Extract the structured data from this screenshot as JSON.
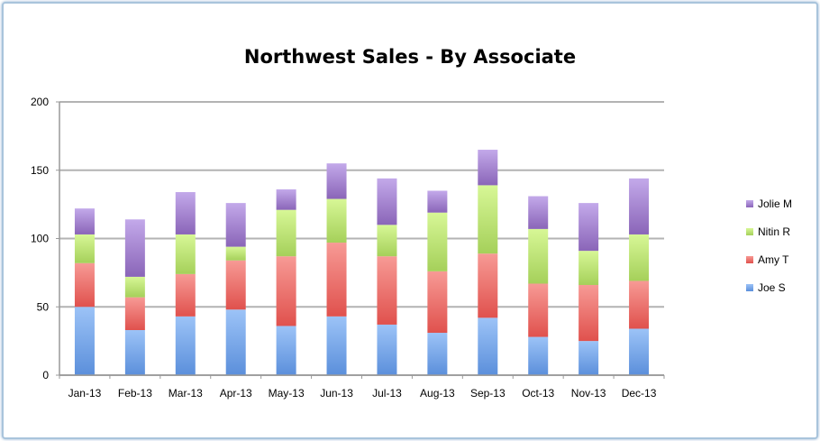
{
  "chart_data": {
    "type": "bar",
    "stacked": true,
    "title": "Northwest Sales - By Associate",
    "xlabel": "",
    "ylabel": "",
    "ylim": [
      0,
      200
    ],
    "yticks": [
      "0",
      "50",
      "100",
      "150",
      "200"
    ],
    "grid": true,
    "legend_position": "right",
    "categories": [
      "Jan-13",
      "Feb-13",
      "Mar-13",
      "Apr-13",
      "May-13",
      "Jun-13",
      "Jul-13",
      "Aug-13",
      "Sep-13",
      "Oct-13",
      "Nov-13",
      "Dec-13"
    ],
    "series": [
      {
        "name": "Joe S",
        "color": "#5b8fdb",
        "values": [
          50,
          33,
          43,
          48,
          36,
          43,
          37,
          31,
          42,
          28,
          25,
          34
        ]
      },
      {
        "name": "Amy T",
        "color": "#e0514d",
        "values": [
          32,
          24,
          31,
          36,
          51,
          54,
          50,
          45,
          47,
          39,
          41,
          35
        ]
      },
      {
        "name": "Nitin R",
        "color": "#a5d05a",
        "values": [
          21,
          15,
          29,
          10,
          34,
          32,
          23,
          43,
          50,
          40,
          25,
          34
        ]
      },
      {
        "name": "Jolie M",
        "color": "#8a65b8",
        "values": [
          19,
          42,
          31,
          32,
          15,
          26,
          34,
          16,
          26,
          24,
          35,
          41
        ]
      }
    ]
  }
}
